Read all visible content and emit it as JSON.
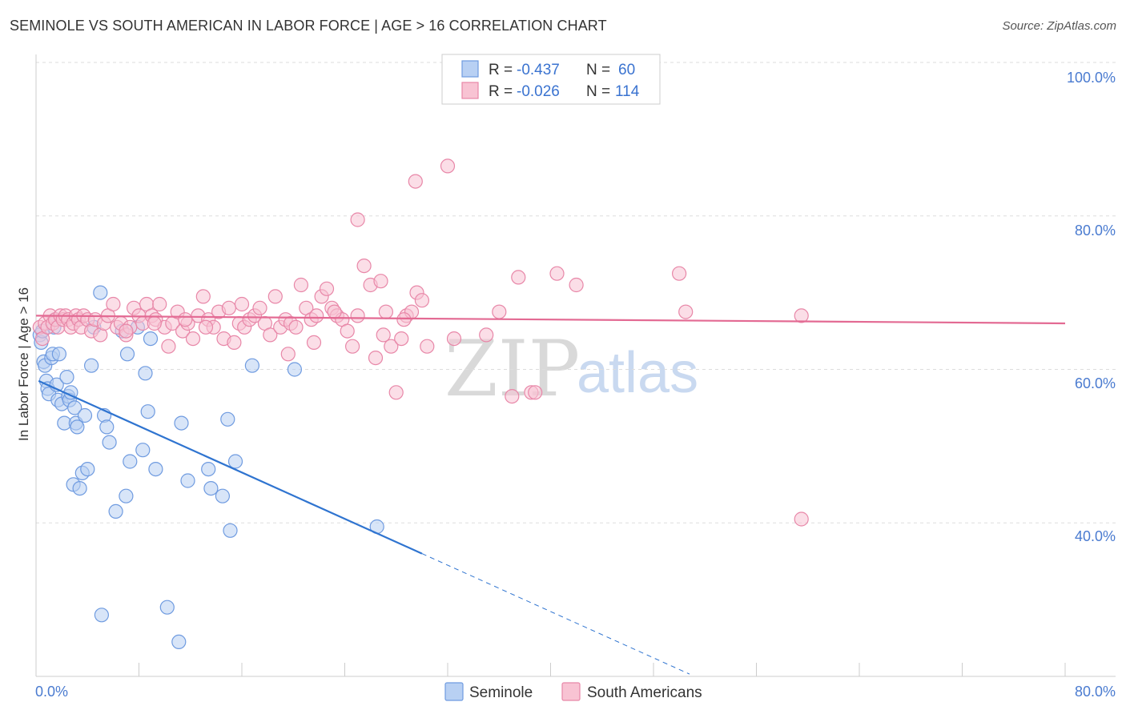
{
  "title": "SEMINOLE VS SOUTH AMERICAN IN LABOR FORCE | AGE > 16 CORRELATION CHART",
  "source": "Source: ZipAtlas.com",
  "watermark": {
    "part1": "ZIP",
    "part2": "atlas"
  },
  "colors": {
    "seminole_fill": "#b8d0f3",
    "seminole_stroke": "#6f9be0",
    "seminole_line": "#2f74d0",
    "south_fill": "#f8c3d3",
    "south_stroke": "#e887a8",
    "south_line": "#e36a93",
    "tick_label": "#4a7bd0",
    "grid": "#dddddd"
  },
  "legend": {
    "rows": [
      {
        "r_label": "R =",
        "r_value": "-0.437",
        "n_label": "N =",
        "n_value": "60"
      },
      {
        "r_label": "R =",
        "r_value": "-0.026",
        "n_label": "N =",
        "n_value": "114"
      }
    ]
  },
  "bottom_legend": [
    "Seminole",
    "South Americans"
  ],
  "chart_data": {
    "type": "scatter",
    "title": "SEMINOLE VS SOUTH AMERICAN IN LABOR FORCE | AGE > 16 CORRELATION CHART",
    "xlabel": "",
    "ylabel": "In Labor Force | Age > 16",
    "xlim": [
      0,
      80
    ],
    "ylim": [
      20,
      100
    ],
    "x_tick_labels": [
      "0.0%",
      "80.0%"
    ],
    "y_ticks": [
      40,
      60,
      80,
      100
    ],
    "y_tick_labels": [
      "40.0%",
      "60.0%",
      "80.0%",
      "100.0%"
    ],
    "grid": true,
    "legend_position": "top-center",
    "series": [
      {
        "name": "Seminole",
        "R": -0.437,
        "N": 60,
        "trend": {
          "x0": 0.2,
          "y0": 58.5,
          "x1": 30.0,
          "y1": 36.0,
          "dash_to_x": 50.8,
          "dash_to_y": 20.3
        },
        "points": [
          [
            0.3,
            64.5
          ],
          [
            0.4,
            63.5
          ],
          [
            0.5,
            65.0
          ],
          [
            0.6,
            61.0
          ],
          [
            0.7,
            60.5
          ],
          [
            0.8,
            58.5
          ],
          [
            0.9,
            57.5
          ],
          [
            1.0,
            56.8
          ],
          [
            1.2,
            61.5
          ],
          [
            1.3,
            62.0
          ],
          [
            1.4,
            65.5
          ],
          [
            1.5,
            66.5
          ],
          [
            1.6,
            58.0
          ],
          [
            1.7,
            56.0
          ],
          [
            1.8,
            62.0
          ],
          [
            2.0,
            55.5
          ],
          [
            2.2,
            53.0
          ],
          [
            2.4,
            59.0
          ],
          [
            2.5,
            56.5
          ],
          [
            2.6,
            56.0
          ],
          [
            2.7,
            57.0
          ],
          [
            2.9,
            45.0
          ],
          [
            3.0,
            55.0
          ],
          [
            3.1,
            53.0
          ],
          [
            3.2,
            52.5
          ],
          [
            3.4,
            44.5
          ],
          [
            3.6,
            46.5
          ],
          [
            3.8,
            54.0
          ],
          [
            4.0,
            47.0
          ],
          [
            4.3,
            60.5
          ],
          [
            4.5,
            65.5
          ],
          [
            5.1,
            28.0
          ],
          [
            5.3,
            54.0
          ],
          [
            5.5,
            52.5
          ],
          [
            5.7,
            50.5
          ],
          [
            6.2,
            41.5
          ],
          [
            6.7,
            65.0
          ],
          [
            7.0,
            43.5
          ],
          [
            7.1,
            62.0
          ],
          [
            7.3,
            48.0
          ],
          [
            7.9,
            65.5
          ],
          [
            8.3,
            49.5
          ],
          [
            8.5,
            59.5
          ],
          [
            8.7,
            54.5
          ],
          [
            8.9,
            64.0
          ],
          [
            9.3,
            47.0
          ],
          [
            10.2,
            29.0
          ],
          [
            11.1,
            24.5
          ],
          [
            11.3,
            53.0
          ],
          [
            11.8,
            45.5
          ],
          [
            13.4,
            47.0
          ],
          [
            13.6,
            44.5
          ],
          [
            14.5,
            43.5
          ],
          [
            14.9,
            53.5
          ],
          [
            15.1,
            39.0
          ],
          [
            15.5,
            48.0
          ],
          [
            16.8,
            60.5
          ],
          [
            20.1,
            60.0
          ],
          [
            26.5,
            39.5
          ],
          [
            5.0,
            70.0
          ]
        ]
      },
      {
        "name": "South Americans",
        "R": -0.026,
        "N": 114,
        "trend": {
          "x0": 0.0,
          "y0": 67.0,
          "x1": 80.0,
          "y1": 66.0
        },
        "points": [
          [
            0.3,
            65.5
          ],
          [
            0.5,
            64.0
          ],
          [
            0.7,
            66.0
          ],
          [
            0.9,
            65.5
          ],
          [
            1.1,
            67.0
          ],
          [
            1.3,
            66.0
          ],
          [
            1.5,
            66.5
          ],
          [
            1.7,
            65.5
          ],
          [
            1.9,
            67.0
          ],
          [
            2.1,
            66.5
          ],
          [
            2.3,
            67.0
          ],
          [
            2.5,
            66.5
          ],
          [
            2.7,
            65.5
          ],
          [
            2.9,
            66.0
          ],
          [
            3.1,
            67.0
          ],
          [
            3.3,
            66.5
          ],
          [
            3.5,
            65.5
          ],
          [
            3.7,
            67.0
          ],
          [
            4.0,
            66.5
          ],
          [
            4.3,
            65.0
          ],
          [
            4.6,
            66.5
          ],
          [
            5.0,
            64.5
          ],
          [
            5.3,
            66.0
          ],
          [
            5.6,
            67.0
          ],
          [
            6.0,
            68.5
          ],
          [
            6.3,
            65.5
          ],
          [
            6.6,
            66.0
          ],
          [
            7.0,
            64.5
          ],
          [
            7.3,
            65.5
          ],
          [
            7.6,
            68.0
          ],
          [
            8.0,
            67.0
          ],
          [
            8.3,
            66.0
          ],
          [
            8.6,
            68.5
          ],
          [
            9.0,
            67.0
          ],
          [
            9.3,
            66.5
          ],
          [
            9.6,
            68.5
          ],
          [
            10.0,
            65.5
          ],
          [
            10.3,
            63.0
          ],
          [
            10.6,
            66.0
          ],
          [
            11.0,
            67.5
          ],
          [
            11.4,
            65.0
          ],
          [
            11.8,
            66.0
          ],
          [
            12.2,
            64.0
          ],
          [
            12.6,
            67.0
          ],
          [
            13.0,
            69.5
          ],
          [
            13.4,
            66.5
          ],
          [
            13.8,
            65.5
          ],
          [
            14.2,
            67.5
          ],
          [
            14.6,
            64.0
          ],
          [
            15.0,
            68.0
          ],
          [
            15.4,
            63.5
          ],
          [
            15.8,
            66.0
          ],
          [
            16.2,
            65.5
          ],
          [
            16.6,
            66.5
          ],
          [
            17.0,
            67.0
          ],
          [
            17.4,
            68.0
          ],
          [
            17.8,
            66.0
          ],
          [
            18.2,
            64.5
          ],
          [
            18.6,
            69.5
          ],
          [
            19.0,
            65.5
          ],
          [
            19.4,
            66.5
          ],
          [
            19.8,
            66.0
          ],
          [
            20.2,
            65.5
          ],
          [
            20.6,
            71.0
          ],
          [
            21.0,
            68.0
          ],
          [
            21.4,
            66.5
          ],
          [
            21.8,
            67.0
          ],
          [
            22.2,
            69.5
          ],
          [
            22.6,
            70.5
          ],
          [
            23.0,
            68.0
          ],
          [
            23.4,
            67.0
          ],
          [
            23.8,
            66.5
          ],
          [
            24.2,
            65.0
          ],
          [
            24.6,
            63.0
          ],
          [
            25.0,
            67.0
          ],
          [
            25.5,
            73.5
          ],
          [
            26.0,
            71.0
          ],
          [
            26.4,
            61.5
          ],
          [
            26.8,
            71.5
          ],
          [
            27.2,
            67.5
          ],
          [
            27.6,
            63.0
          ],
          [
            28.0,
            57.0
          ],
          [
            28.4,
            64.0
          ],
          [
            28.8,
            67.0
          ],
          [
            29.2,
            67.5
          ],
          [
            29.6,
            70.0
          ],
          [
            30.0,
            69.0
          ],
          [
            30.4,
            63.0
          ],
          [
            25.0,
            79.5
          ],
          [
            29.5,
            84.5
          ],
          [
            32.0,
            86.5
          ],
          [
            35.0,
            64.5
          ],
          [
            36.0,
            67.5
          ],
          [
            37.0,
            56.5
          ],
          [
            37.5,
            72.0
          ],
          [
            38.5,
            57.0
          ],
          [
            38.8,
            57.0
          ],
          [
            40.5,
            72.5
          ],
          [
            42.0,
            71.0
          ],
          [
            50.0,
            72.5
          ],
          [
            50.5,
            67.5
          ],
          [
            59.5,
            67.0
          ],
          [
            59.5,
            40.5
          ],
          [
            7.0,
            65.0
          ],
          [
            9.2,
            66.0
          ],
          [
            11.6,
            66.5
          ],
          [
            13.2,
            65.5
          ],
          [
            16.0,
            68.5
          ],
          [
            19.6,
            62.0
          ],
          [
            21.6,
            63.5
          ],
          [
            23.2,
            67.5
          ],
          [
            27.0,
            64.5
          ],
          [
            28.6,
            66.5
          ],
          [
            32.5,
            64.0
          ]
        ]
      }
    ]
  }
}
